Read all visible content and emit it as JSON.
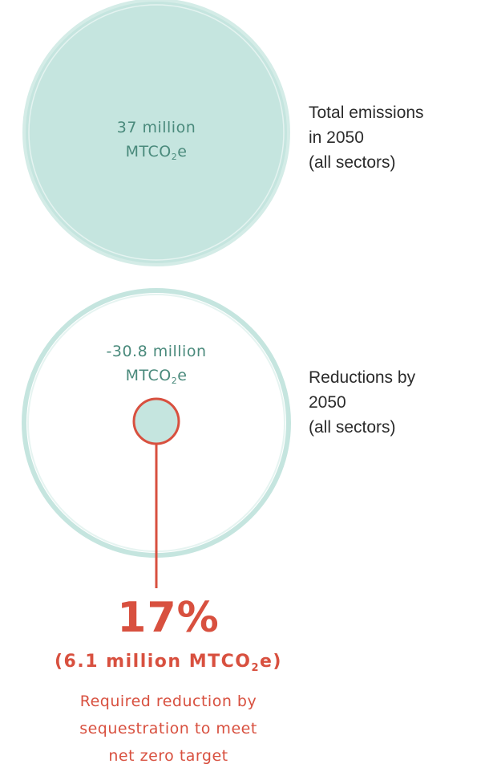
{
  "colors": {
    "teal_fill": "#c5e5df",
    "teal_ring": "#bfe0da",
    "teal_text": "#4a8a7c",
    "red_accent": "#d8503f",
    "dark_text": "#2b2b2b"
  },
  "total_circle": {
    "value_line": "37 million",
    "unit_prefix": "MTCO",
    "unit_sub": "2",
    "unit_suffix": "e",
    "label_lines": [
      "Total emissions",
      "in 2050",
      "(all sectors)"
    ]
  },
  "reduction_circle": {
    "value_line": "-30.8 million",
    "unit_prefix": "MTCO",
    "unit_sub": "2",
    "unit_suffix": "e",
    "label_lines": [
      "Reductions by",
      "2050",
      "(all sectors)"
    ]
  },
  "sequestration": {
    "percent": "17%",
    "amount_prefix": "(6.1 million MTCO",
    "amount_sub": "2",
    "amount_suffix": "e)",
    "caption_lines": [
      "Required reduction by",
      "sequestration to meet",
      "net zero target"
    ]
  }
}
